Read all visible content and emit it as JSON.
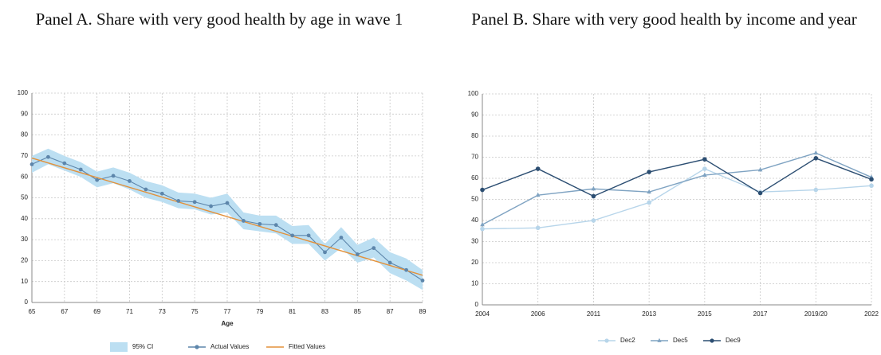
{
  "chart_data": [
    {
      "type": "line",
      "title": "Panel A. Share with very good health by age in wave 1",
      "x_label": "Age",
      "x": [
        65,
        66,
        67,
        68,
        69,
        70,
        71,
        72,
        73,
        74,
        75,
        76,
        77,
        78,
        79,
        80,
        81,
        82,
        83,
        84,
        85,
        86,
        87,
        88,
        89
      ],
      "band": {
        "name": "95% CI",
        "color": "#bcdff2",
        "lower": [
          62,
          66,
          63,
          60,
          55,
          57,
          54,
          50,
          48,
          45,
          44.5,
          42,
          43,
          35,
          34,
          33,
          28,
          28,
          20,
          26,
          19,
          21.5,
          14,
          10.5,
          6
        ],
        "upper": [
          70,
          73.5,
          70,
          67,
          62.5,
          64.5,
          62,
          58,
          56,
          52.5,
          52,
          50,
          52,
          43,
          41.5,
          41.5,
          36.5,
          37,
          28,
          36,
          27.5,
          31,
          24,
          21,
          15.5
        ]
      },
      "series": [
        {
          "name": "Actual Values",
          "color": "#5d86ab",
          "values": [
            66,
            69.5,
            66.5,
            63.5,
            58.5,
            60.5,
            58,
            54,
            52,
            48.5,
            48,
            46,
            47.5,
            39,
            37.5,
            37,
            32,
            32,
            24,
            31,
            23,
            26,
            19,
            15.5,
            10.5
          ]
        }
      ],
      "fit": {
        "name": "Fitted Values",
        "color": "#e3913a",
        "x": [
          65,
          89
        ],
        "values": [
          69,
          13
        ]
      },
      "xlim": [
        65,
        89
      ],
      "xticks": [
        65,
        67,
        69,
        71,
        73,
        75,
        77,
        79,
        81,
        83,
        85,
        87,
        89
      ],
      "ylim": [
        0,
        100
      ],
      "yticks": [
        0,
        10,
        20,
        30,
        40,
        50,
        60,
        70,
        80,
        90,
        100
      ],
      "grid": true
    },
    {
      "type": "line",
      "title": "Panel B. Share with very good health by income and year",
      "categories": [
        "2004",
        "2006",
        "2011",
        "2013",
        "2015",
        "2017",
        "2019/20",
        "2022"
      ],
      "series": [
        {
          "name": "Dec2",
          "color": "#b7d5ea",
          "marker": "circle",
          "values": [
            36,
            36.5,
            40,
            48.5,
            64.5,
            53.5,
            54.5,
            56.5
          ]
        },
        {
          "name": "Dec5",
          "color": "#7fa3c2",
          "marker": "triangle",
          "values": [
            38,
            52,
            55,
            53.5,
            61.5,
            64,
            72,
            60.5
          ]
        },
        {
          "name": "Dec9",
          "color": "#2c4e72",
          "marker": "circle",
          "values": [
            54.5,
            64.5,
            51.5,
            63,
            69,
            53,
            69.5,
            59.5
          ]
        }
      ],
      "ylim": [
        0,
        100
      ],
      "yticks": [
        0,
        10,
        20,
        30,
        40,
        50,
        60,
        70,
        80,
        90,
        100
      ],
      "grid": true
    }
  ]
}
